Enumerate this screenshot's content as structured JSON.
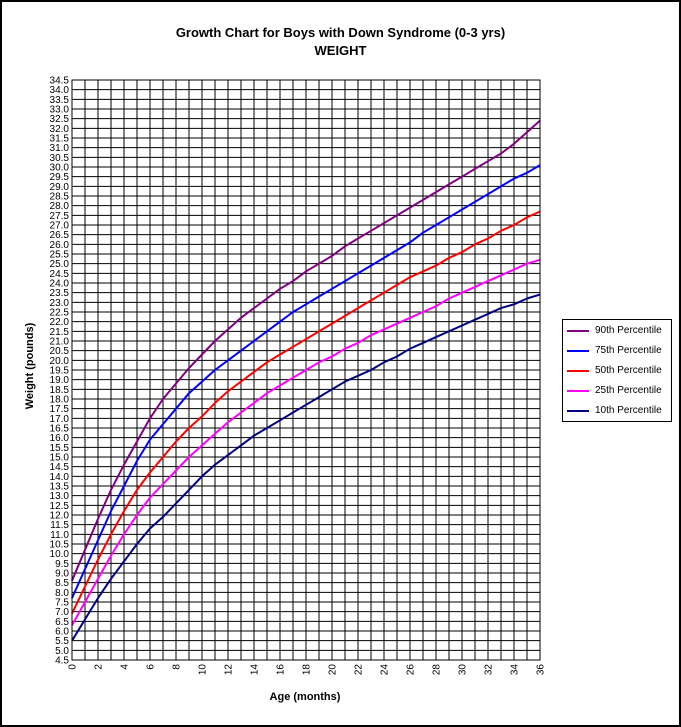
{
  "chart_data": {
    "type": "line",
    "title": "Growth Chart for Boys with Down Syndrome  (0-3 yrs)",
    "subtitle": "WEIGHT",
    "xlabel": "Age (months)",
    "ylabel": "Weight  (pounds)",
    "xlim": [
      0,
      36
    ],
    "ylim": [
      4.5,
      34.5
    ],
    "grid": true,
    "legend_position": "right",
    "x_ticks": [
      "0",
      "2",
      "4",
      "6",
      "8",
      "10",
      "12",
      "14",
      "16",
      "18",
      "20",
      "22",
      "24",
      "26",
      "28",
      "30",
      "32",
      "34",
      "36"
    ],
    "y_ticks": [
      "4.5",
      "5.0",
      "5.5",
      "6.0",
      "6.5",
      "7.0",
      "7.5",
      "8.0",
      "8.5",
      "9.0",
      "9.5",
      "10.0",
      "10.5",
      "11.0",
      "11.5",
      "12.0",
      "12.5",
      "13.0",
      "13.5",
      "14.0",
      "14.5",
      "15.0",
      "15.5",
      "16.0",
      "16.5",
      "17.0",
      "17.5",
      "18.0",
      "18.5",
      "19.0",
      "19.5",
      "20.0",
      "20.5",
      "21.0",
      "21.5",
      "22.0",
      "22.5",
      "23.0",
      "23.5",
      "24.0",
      "24.5",
      "25.0",
      "25.5",
      "26.0",
      "26.5",
      "27.0",
      "27.5",
      "28.0",
      "28.5",
      "29.0",
      "29.5",
      "30.0",
      "30.5",
      "31.0",
      "31.5",
      "32.0",
      "32.5",
      "33.0",
      "33.5",
      "34.0",
      "34.5"
    ],
    "x": [
      0,
      1,
      2,
      3,
      4,
      5,
      6,
      7,
      8,
      9,
      10,
      11,
      12,
      13,
      14,
      15,
      16,
      17,
      18,
      19,
      20,
      21,
      22,
      23,
      24,
      25,
      26,
      27,
      28,
      29,
      30,
      31,
      32,
      33,
      34,
      35,
      36
    ],
    "series": [
      {
        "name": "90th Percentile",
        "color": "#800080",
        "values": [
          8.6,
          10.2,
          11.8,
          13.3,
          14.6,
          15.8,
          17.0,
          18.0,
          18.8,
          19.6,
          20.3,
          21.0,
          21.6,
          22.2,
          22.7,
          23.2,
          23.7,
          24.1,
          24.6,
          25.0,
          25.4,
          25.9,
          26.3,
          26.7,
          27.1,
          27.5,
          27.9,
          28.3,
          28.7,
          29.1,
          29.5,
          29.9,
          30.3,
          30.7,
          31.2,
          31.8,
          32.4
        ]
      },
      {
        "name": "75th Percentile",
        "color": "#0000FF",
        "values": [
          7.7,
          9.2,
          10.7,
          12.2,
          13.5,
          14.8,
          15.9,
          16.7,
          17.5,
          18.3,
          18.9,
          19.5,
          20.0,
          20.5,
          21.0,
          21.5,
          22.0,
          22.5,
          22.9,
          23.3,
          23.7,
          24.1,
          24.5,
          24.9,
          25.3,
          25.7,
          26.1,
          26.6,
          27.0,
          27.4,
          27.8,
          28.2,
          28.6,
          29.0,
          29.4,
          29.7,
          30.1
        ]
      },
      {
        "name": "50th Percentile",
        "color": "#FF0000",
        "values": [
          6.9,
          8.3,
          9.7,
          11.0,
          12.2,
          13.3,
          14.2,
          15.0,
          15.8,
          16.5,
          17.1,
          17.8,
          18.4,
          18.9,
          19.4,
          19.9,
          20.3,
          20.7,
          21.1,
          21.5,
          21.9,
          22.3,
          22.7,
          23.1,
          23.5,
          23.9,
          24.3,
          24.6,
          24.9,
          25.3,
          25.6,
          26.0,
          26.3,
          26.7,
          27.0,
          27.4,
          27.7
        ]
      },
      {
        "name": "25th Percentile",
        "color": "#FF00FF",
        "values": [
          6.3,
          7.5,
          8.7,
          9.9,
          11.0,
          12.0,
          12.9,
          13.6,
          14.3,
          15.0,
          15.6,
          16.2,
          16.8,
          17.3,
          17.8,
          18.3,
          18.7,
          19.1,
          19.5,
          19.9,
          20.2,
          20.6,
          20.9,
          21.3,
          21.6,
          21.9,
          22.2,
          22.5,
          22.8,
          23.2,
          23.5,
          23.8,
          24.1,
          24.4,
          24.7,
          25.0,
          25.2
        ]
      },
      {
        "name": "10th Percentile",
        "color": "#000080",
        "values": [
          5.5,
          6.6,
          7.7,
          8.7,
          9.6,
          10.5,
          11.3,
          11.9,
          12.6,
          13.3,
          14.0,
          14.6,
          15.1,
          15.6,
          16.1,
          16.5,
          16.9,
          17.3,
          17.7,
          18.1,
          18.5,
          18.9,
          19.2,
          19.5,
          19.9,
          20.2,
          20.6,
          20.9,
          21.2,
          21.5,
          21.8,
          22.1,
          22.4,
          22.7,
          22.9,
          23.2,
          23.4
        ]
      }
    ]
  }
}
